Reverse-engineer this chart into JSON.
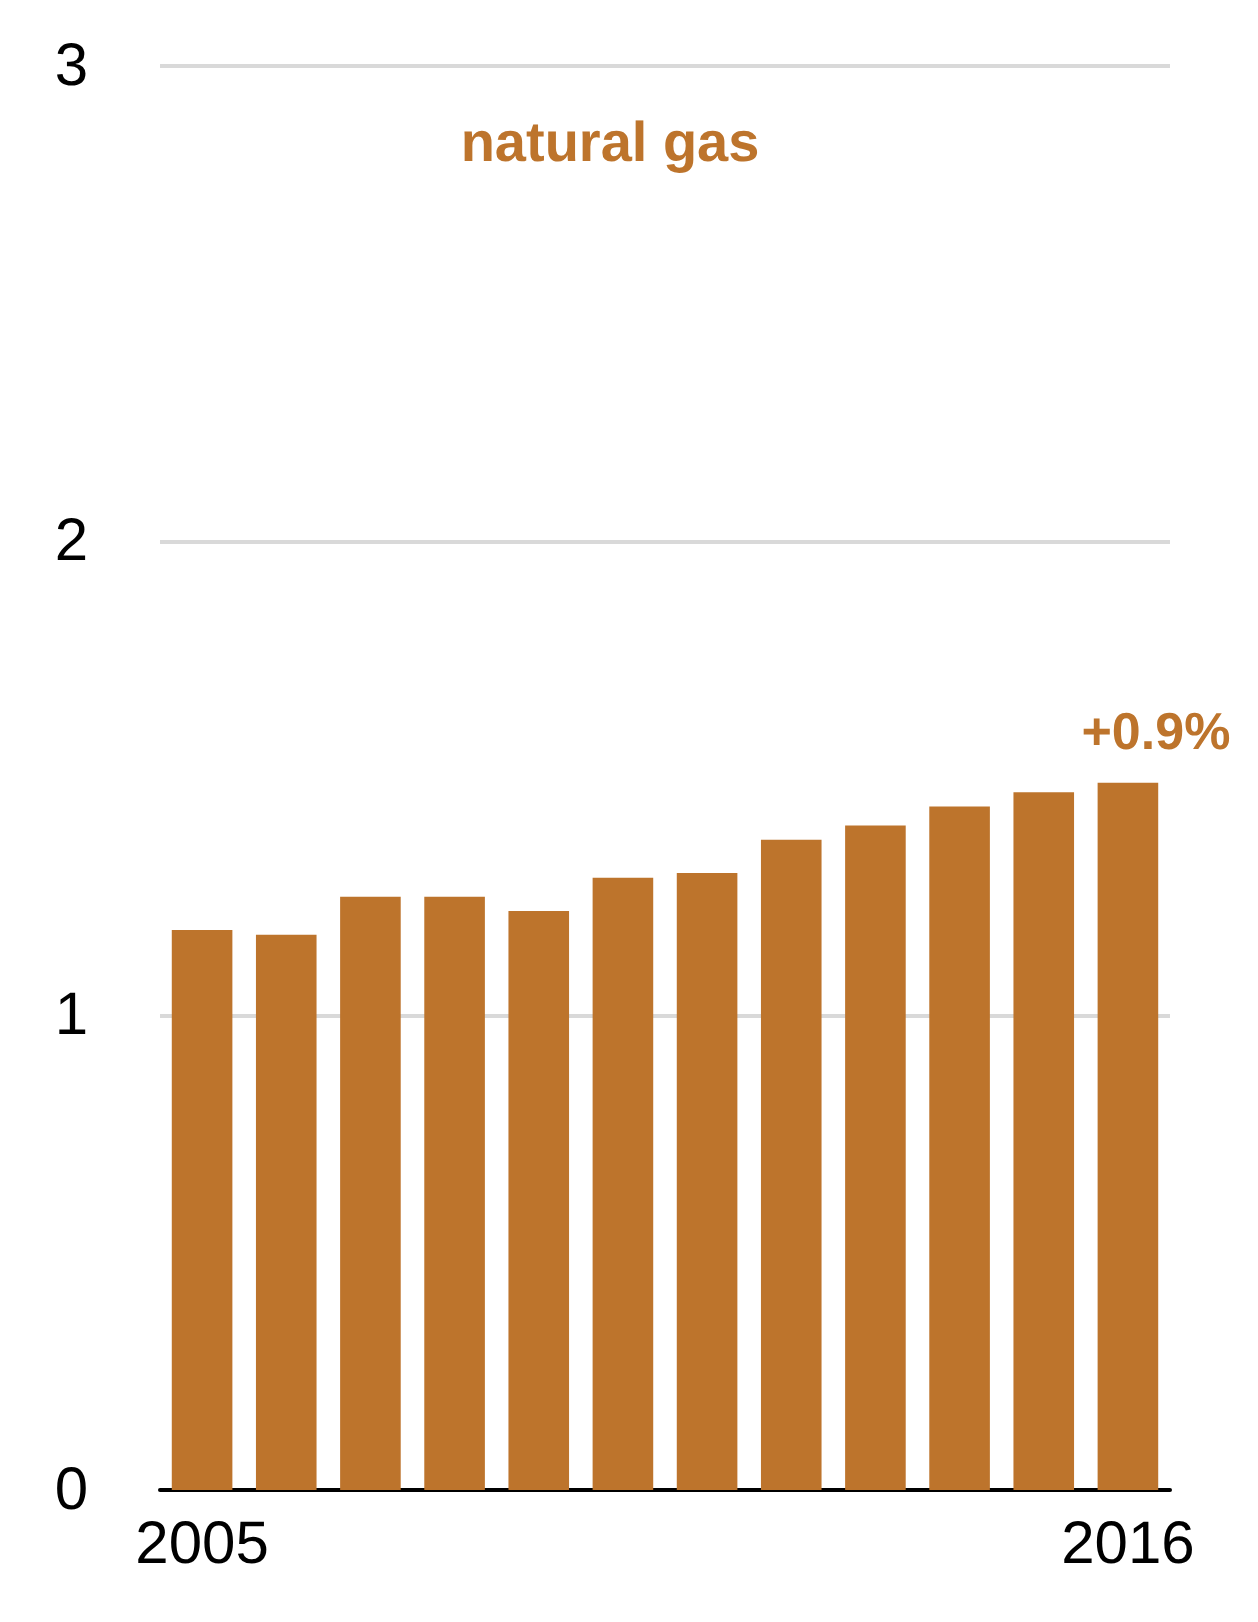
{
  "chart_data": {
    "type": "bar",
    "title": "natural gas",
    "categories": [
      "2005",
      null,
      null,
      null,
      null,
      null,
      null,
      null,
      null,
      null,
      null,
      "2016"
    ],
    "values": [
      1.18,
      1.17,
      1.25,
      1.25,
      1.22,
      1.29,
      1.3,
      1.37,
      1.4,
      1.44,
      1.47,
      1.49
    ],
    "color": "#bd742c",
    "ylim": [
      0,
      3
    ],
    "yticks": [
      0,
      1,
      2,
      3
    ],
    "grid": "y",
    "annotations": [
      {
        "text": "+0.9%",
        "x": "2016",
        "y": 1.49
      }
    ]
  }
}
